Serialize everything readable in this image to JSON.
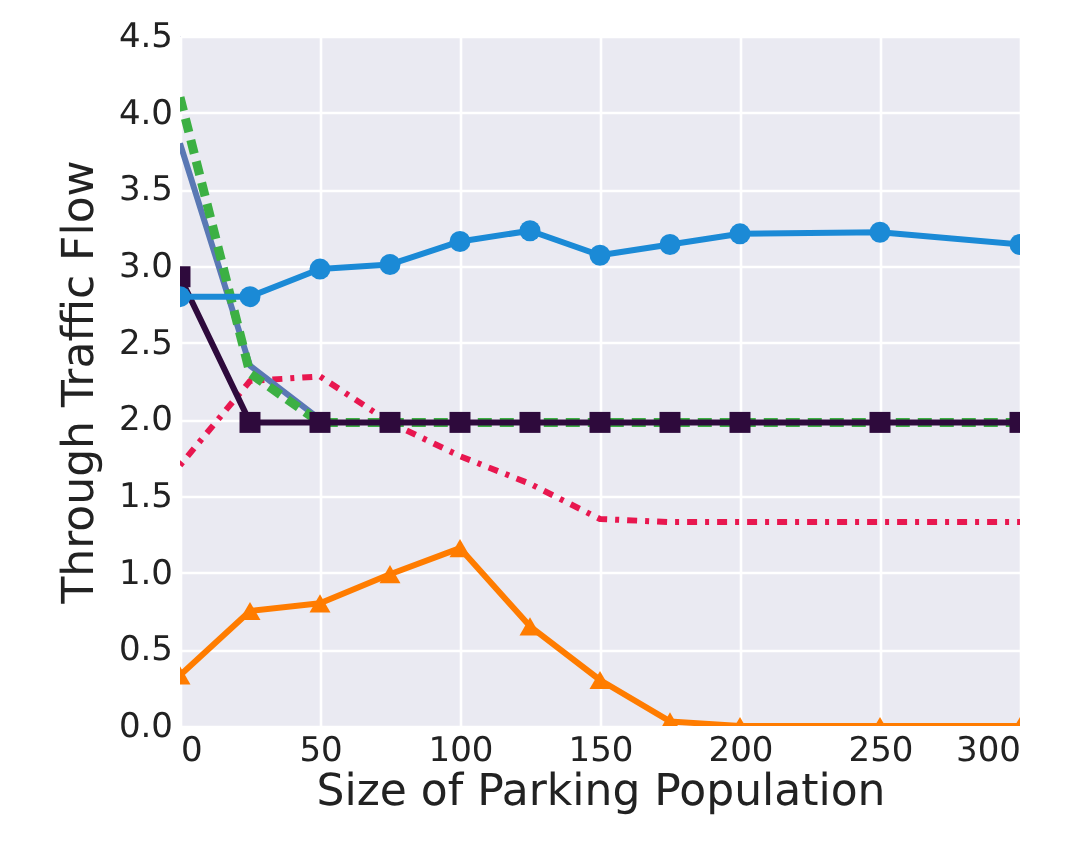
{
  "chart_data": {
    "type": "line",
    "xlabel": "Size of Parking Population",
    "ylabel": "Through Traffic Flow",
    "x": [
      0,
      25,
      50,
      75,
      100,
      125,
      150,
      175,
      200,
      250,
      300
    ],
    "xlim": [
      0,
      300
    ],
    "xticks": [
      0,
      50,
      100,
      150,
      200,
      250,
      300
    ],
    "ylim": [
      0,
      4.5
    ],
    "yticks": [
      {
        "value": 0,
        "label": "0.0"
      },
      {
        "value": 0.5,
        "label": "0.5"
      },
      {
        "value": 1,
        "label": "1.0"
      },
      {
        "value": 1.5,
        "label": "1.5"
      },
      {
        "value": 2,
        "label": "2.0"
      },
      {
        "value": 2.5,
        "label": "2.5"
      },
      {
        "value": 3,
        "label": "3.0"
      },
      {
        "value": 3.5,
        "label": "3.5"
      },
      {
        "value": 4,
        "label": "4.0"
      },
      {
        "value": 4.5,
        "label": "4.5"
      }
    ],
    "grid": true,
    "series": [
      {
        "color": "#e8174f",
        "line_style": "dotted",
        "marker": "none",
        "values": [
          1.7,
          2.25,
          2.28,
          1.98,
          1.76,
          1.58,
          1.35,
          1.33,
          1.33,
          1.33,
          1.33
        ]
      },
      {
        "color": "#5a78b4",
        "line_style": "solid",
        "marker": "none",
        "values": [
          3.8,
          2.35,
          2.0,
          null,
          null,
          null,
          null,
          null,
          null,
          null,
          null
        ]
      },
      {
        "color": "#3cb043",
        "line_style": "dashed",
        "marker": "none",
        "values": [
          4.1,
          2.3,
          1.98,
          1.98,
          1.98,
          1.98,
          1.98,
          1.98,
          1.98,
          1.98,
          1.98
        ]
      },
      {
        "color": "#2e0a3c",
        "line_style": "solid",
        "marker": "square",
        "values": [
          2.93,
          1.98,
          1.98,
          1.98,
          1.98,
          1.98,
          1.98,
          1.98,
          1.98,
          1.98,
          1.98
        ]
      },
      {
        "color": "#1b8ad6",
        "line_style": "solid",
        "marker": "circle",
        "values": [
          2.8,
          2.8,
          2.98,
          3.01,
          3.16,
          3.23,
          3.07,
          3.14,
          3.21,
          3.22,
          3.14
        ]
      },
      {
        "color": "#ff7c00",
        "line_style": "solid",
        "marker": "triangle",
        "values": [
          0.33,
          0.75,
          0.8,
          0.99,
          1.16,
          0.65,
          0.3,
          0.03,
          0,
          0,
          0
        ]
      }
    ]
  }
}
